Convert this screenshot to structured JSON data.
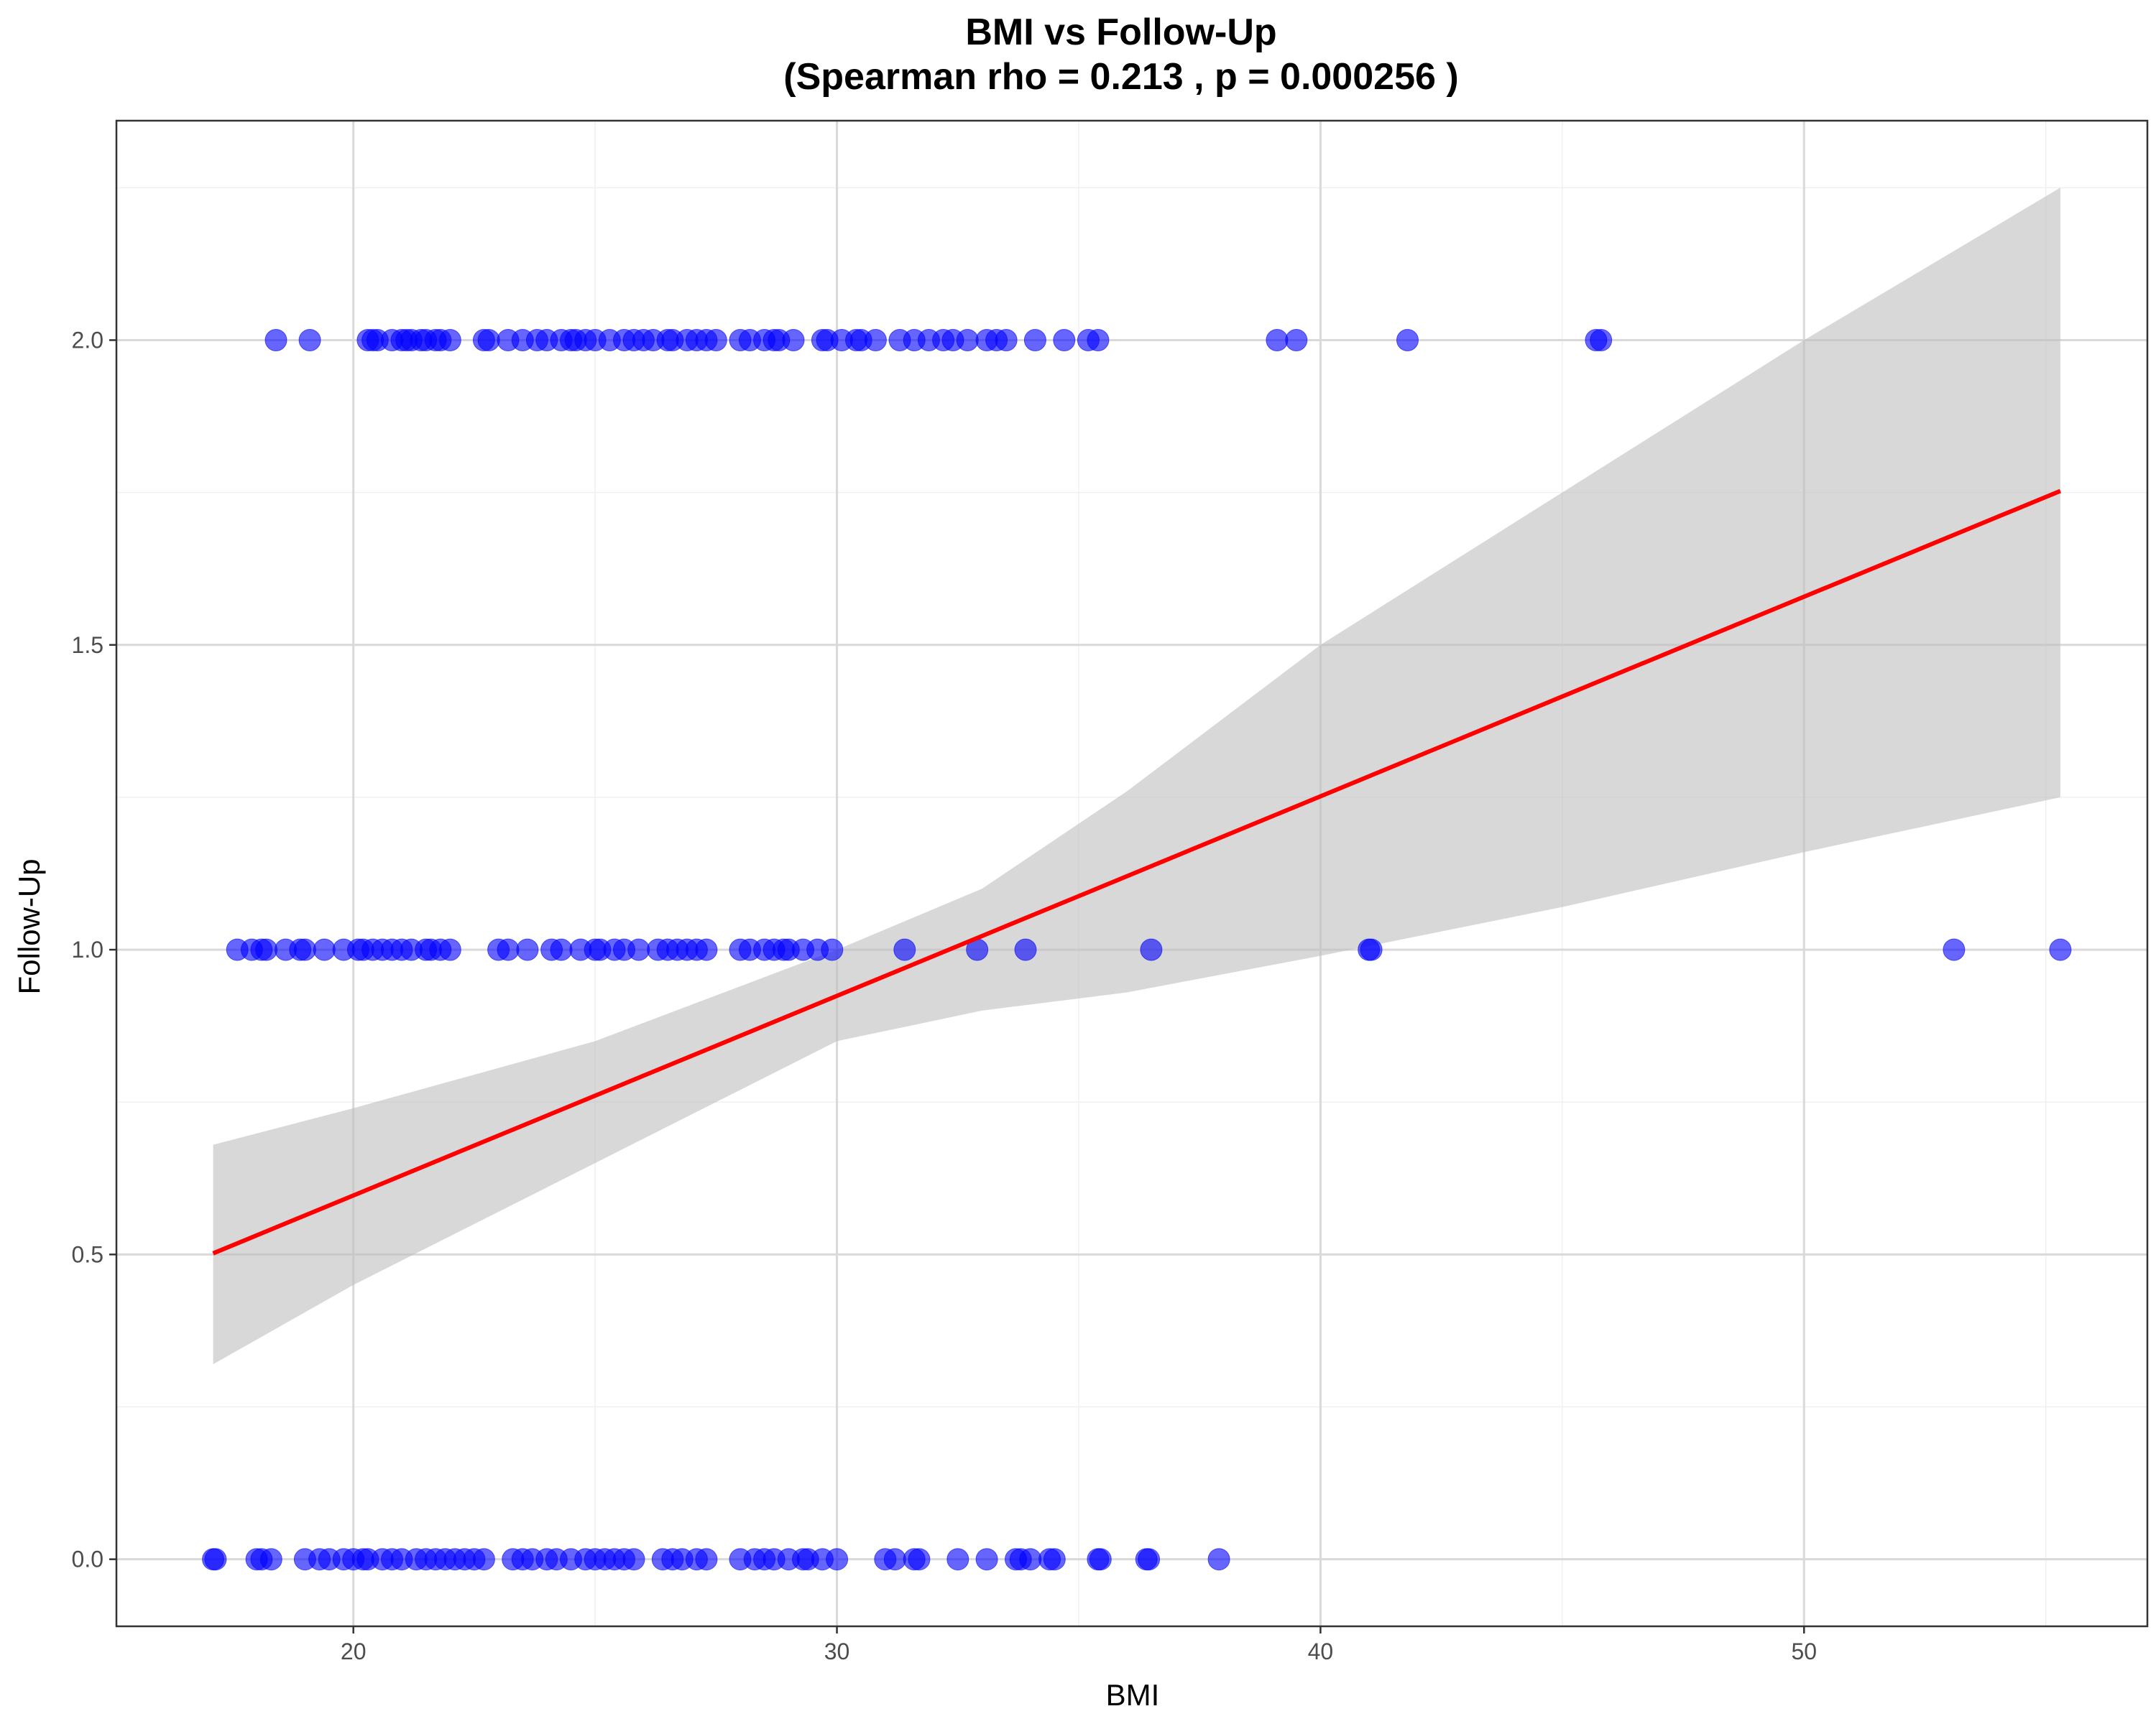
{
  "chart_data": {
    "type": "scatter",
    "title_line1": "BMI vs Follow-Up",
    "title_line2": "(Spearman rho = 0.213 , p = 0.000256 )",
    "xlabel": "BMI",
    "ylabel": "Follow-Up",
    "xlim": [
      15.1,
      57.1
    ],
    "ylim": [
      -0.11,
      2.36
    ],
    "x_ticks": [
      20,
      30,
      40,
      50
    ],
    "x_tick_labels": [
      "20",
      "30",
      "40",
      "50"
    ],
    "y_ticks": [
      0.0,
      0.5,
      1.0,
      1.5,
      2.0
    ],
    "y_tick_labels": [
      "0.0",
      "0.5",
      "1.0",
      "1.5",
      "2.0"
    ],
    "grid": true,
    "colors": {
      "points": "#0000ff",
      "fit_line": "#ff0000",
      "confidence_band": "#bebebe",
      "grid": "#d9d9d9",
      "panel_border": "#333333"
    },
    "fit": {
      "method": "linear",
      "x_range": [
        17.1,
        55.3
      ],
      "intercept": -0.058,
      "slope": 0.03274,
      "confidence_band": {
        "x": [
          17.1,
          20,
          25,
          30,
          33,
          36,
          40,
          45,
          50,
          55.3
        ],
        "lower": [
          0.32,
          0.45,
          0.65,
          0.85,
          0.9,
          0.93,
          0.99,
          1.07,
          1.16,
          1.25
        ],
        "upper": [
          0.68,
          0.74,
          0.85,
          1.0,
          1.1,
          1.26,
          1.5,
          1.75,
          2.0,
          2.25
        ]
      }
    },
    "series": [
      {
        "y": 2.0,
        "x": [
          18.4,
          19.1,
          20.3,
          20.4,
          20.5,
          20.8,
          21.0,
          21.1,
          21.2,
          21.4,
          21.5,
          21.7,
          21.8,
          22.0,
          22.7,
          22.8,
          23.2,
          23.5,
          23.8,
          24.0,
          24.3,
          24.5,
          24.6,
          24.8,
          25.0,
          25.3,
          25.6,
          25.8,
          26.0,
          26.2,
          26.5,
          26.6,
          26.9,
          27.1,
          27.3,
          27.5,
          28.0,
          28.2,
          28.5,
          28.7,
          28.8,
          29.1,
          29.7,
          29.8,
          30.1,
          30.4,
          30.5,
          30.8,
          31.3,
          31.6,
          31.9,
          32.2,
          32.4,
          32.7,
          33.1,
          33.3,
          33.5,
          34.1,
          34.7,
          35.2,
          35.4,
          39.1,
          39.5,
          41.8,
          45.7,
          45.8
        ]
      },
      {
        "y": 1.0,
        "x": [
          17.6,
          17.9,
          18.1,
          18.2,
          18.6,
          18.9,
          19.0,
          19.4,
          19.8,
          20.1,
          20.2,
          20.4,
          20.6,
          20.8,
          21.0,
          21.2,
          21.5,
          21.6,
          21.8,
          22.0,
          23.0,
          23.2,
          23.6,
          24.1,
          24.3,
          24.7,
          25.0,
          25.1,
          25.4,
          25.6,
          25.9,
          26.3,
          26.5,
          26.7,
          26.9,
          27.1,
          27.3,
          28.0,
          28.2,
          28.5,
          28.7,
          28.9,
          29.0,
          29.3,
          29.6,
          29.9,
          31.4,
          32.9,
          33.9,
          36.5,
          41.0,
          41.05,
          53.1,
          55.3
        ]
      },
      {
        "y": 0.0,
        "x": [
          17.1,
          17.15,
          18.0,
          18.1,
          18.3,
          19.0,
          19.3,
          19.5,
          19.8,
          20.0,
          20.2,
          20.3,
          20.6,
          20.8,
          21.0,
          21.3,
          21.5,
          21.7,
          21.9,
          22.1,
          22.3,
          22.5,
          22.7,
          23.3,
          23.5,
          23.7,
          24.0,
          24.2,
          24.5,
          24.8,
          25.0,
          25.2,
          25.4,
          25.6,
          25.8,
          26.4,
          26.6,
          26.8,
          27.1,
          27.3,
          28.0,
          28.3,
          28.5,
          28.7,
          29.0,
          29.3,
          29.4,
          29.7,
          30.0,
          31.0,
          31.2,
          31.6,
          31.7,
          32.5,
          33.1,
          33.7,
          33.8,
          34.0,
          34.4,
          34.5,
          35.4,
          35.45,
          36.4,
          36.45,
          37.9
        ]
      }
    ]
  }
}
